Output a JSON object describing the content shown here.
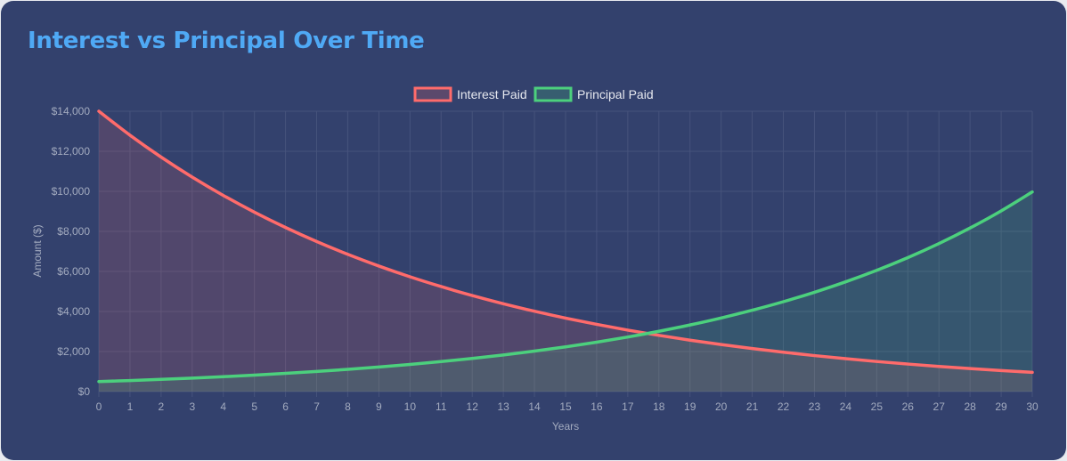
{
  "header": {
    "title": "Interest vs Principal Over Time"
  },
  "colors": {
    "background": "#33416d",
    "title": "#4fa9f5",
    "interest": "#ff6b6b",
    "principal": "#4cd07d",
    "grid": "#46537c",
    "ticks": "#a3abbf"
  },
  "chart_data": {
    "type": "line",
    "title": "Interest vs Principal Over Time",
    "xlabel": "Years",
    "ylabel": "Amount ($)",
    "x": [
      0,
      1,
      2,
      3,
      4,
      5,
      6,
      7,
      8,
      9,
      10,
      11,
      12,
      13,
      14,
      15,
      16,
      17,
      18,
      19,
      20,
      21,
      22,
      23,
      24,
      25,
      26,
      27,
      28,
      29,
      30
    ],
    "ylim": [
      0,
      14000
    ],
    "yticks": [
      0,
      2000,
      4000,
      6000,
      8000,
      10000,
      12000,
      14000
    ],
    "ytick_labels": [
      "$0",
      "$2,000",
      "$4,000",
      "$6,000",
      "$8,000",
      "$10,000",
      "$12,000",
      "$14,000"
    ],
    "grid": true,
    "fill": true,
    "legend_position": "top",
    "series": [
      {
        "name": "Interest Paid",
        "color": "#ff6b6b",
        "values": [
          14000,
          12804,
          11711,
          10711,
          9796,
          8960,
          8195,
          7495,
          6855,
          6270,
          5734,
          5245,
          4797,
          4387,
          4013,
          3670,
          3357,
          3070,
          2808,
          2568,
          2349,
          2148,
          1965,
          1797,
          1644,
          1503,
          1375,
          1258,
          1150,
          1052,
          962
        ]
      },
      {
        "name": "Principal Paid",
        "color": "#4cd07d",
        "values": [
          500,
          552,
          610,
          674,
          745,
          824,
          910,
          1005,
          1111,
          1227,
          1356,
          1498,
          1655,
          1829,
          2021,
          2233,
          2467,
          2726,
          3012,
          3328,
          3677,
          4063,
          4489,
          4960,
          5480,
          6055,
          6690,
          7392,
          8168,
          9024,
          9971
        ]
      }
    ]
  }
}
